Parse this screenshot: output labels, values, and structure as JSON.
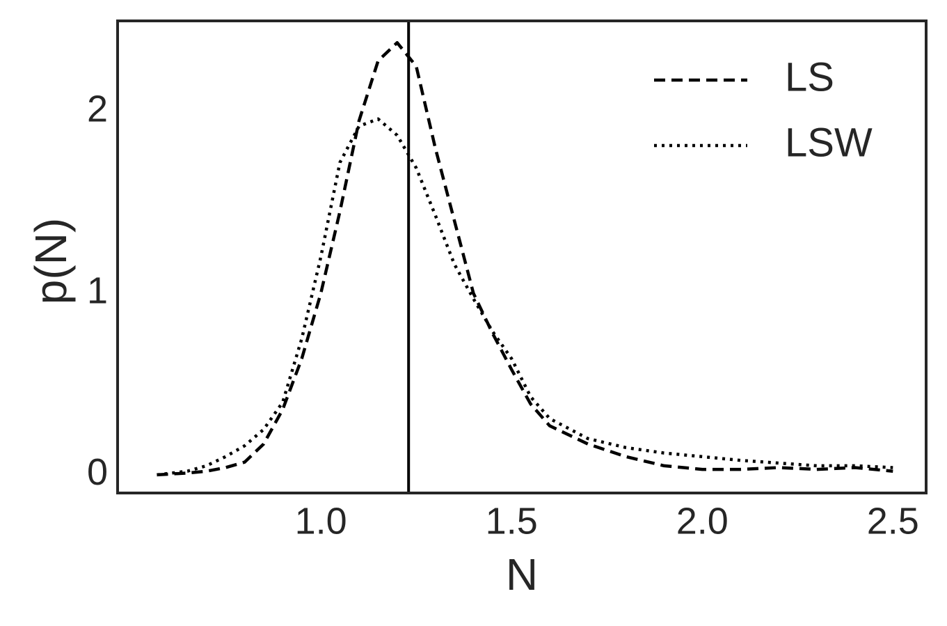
{
  "chart_data": {
    "type": "line",
    "xlabel": "N",
    "ylabel": "p(N)",
    "x": [
      0.57,
      0.65,
      0.7,
      0.75,
      0.8,
      0.85,
      0.9,
      0.95,
      1.0,
      1.05,
      1.1,
      1.15,
      1.2,
      1.25,
      1.3,
      1.35,
      1.4,
      1.45,
      1.5,
      1.55,
      1.6,
      1.7,
      1.8,
      1.9,
      2.0,
      2.1,
      2.2,
      2.3,
      2.4,
      2.5
    ],
    "series": [
      {
        "name": "LS",
        "color": "#000000",
        "style": "dashed",
        "values": [
          0.0,
          0.01,
          0.02,
          0.04,
          0.07,
          0.17,
          0.36,
          0.64,
          1.0,
          1.45,
          1.95,
          2.28,
          2.38,
          2.25,
          1.8,
          1.4,
          1.0,
          0.78,
          0.58,
          0.39,
          0.27,
          0.17,
          0.1,
          0.05,
          0.03,
          0.03,
          0.04,
          0.03,
          0.04,
          0.02
        ]
      },
      {
        "name": "LSW",
        "color": "#000000",
        "style": "dotted",
        "values": [
          0.0,
          0.02,
          0.05,
          0.1,
          0.16,
          0.25,
          0.4,
          0.75,
          1.2,
          1.72,
          1.92,
          1.96,
          1.87,
          1.69,
          1.43,
          1.16,
          0.97,
          0.79,
          0.64,
          0.43,
          0.31,
          0.2,
          0.15,
          0.12,
          0.1,
          0.08,
          0.065,
          0.05,
          0.05,
          0.04
        ]
      }
    ],
    "vline": 1.23,
    "vline_color": "#000000",
    "xlim": [
      0.467,
      2.587
    ],
    "ylim": [
      -0.1,
      2.5
    ],
    "xticks": [
      {
        "value": 1,
        "label": "1.0"
      },
      1.5,
      {
        "value": 2,
        "label": "2.0"
      },
      2.5
    ],
    "yticks": [
      0,
      1,
      2
    ],
    "grid": false,
    "legend": "upper right"
  }
}
